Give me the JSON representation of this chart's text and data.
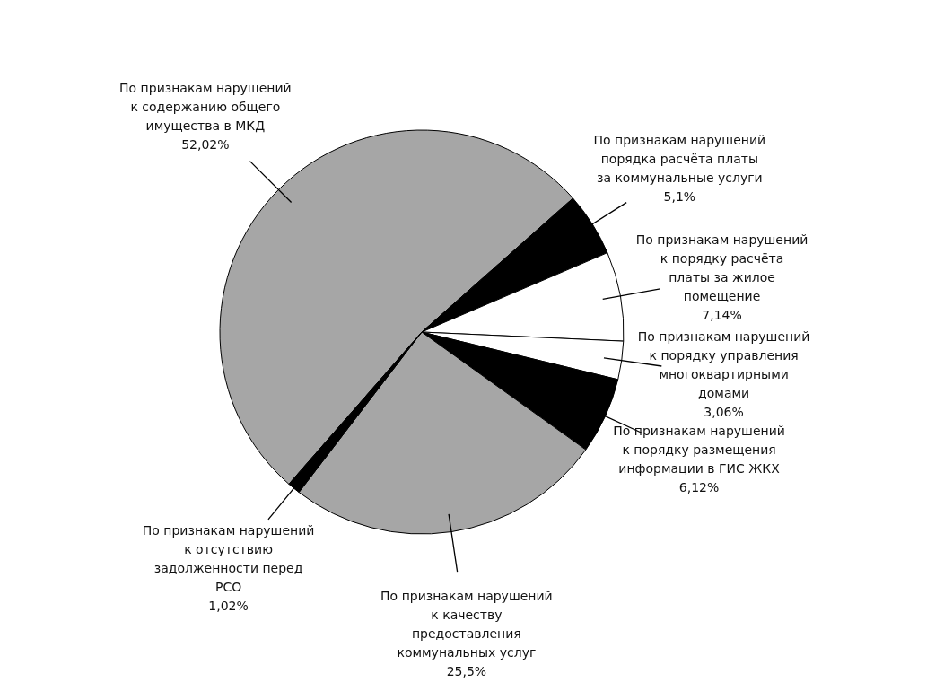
{
  "chart_data": {
    "type": "pie",
    "categories": [
      "По признакам нарушений к содержанию общего имущества в МКД",
      "По признакам нарушений порядка расчёта платы за коммунальные услуги",
      "По признакам нарушений к порядку расчёта платы за жилое помещение",
      "По признакам нарушений к порядку управления многоквартирными домами",
      "По признакам нарушений к порядку размещения информации в ГИС ЖКХ",
      "По признакам нарушений к качеству предоставления коммунальных услуг",
      "По признакам нарушений к отсутствию задолженности перед РСО"
    ],
    "values": [
      52.02,
      5.1,
      7.14,
      3.06,
      6.12,
      25.5,
      1.02
    ],
    "value_labels": [
      "52,02%",
      "5,1%",
      "7,14%",
      "3,06%",
      "6,12%",
      "25,5%",
      "1,02%"
    ],
    "colors": [
      "#a6a6a6",
      "#000000",
      "#ffffff",
      "#ffffff",
      "#000000",
      "#a6a6a6",
      "#000000"
    ],
    "legend": false
  }
}
